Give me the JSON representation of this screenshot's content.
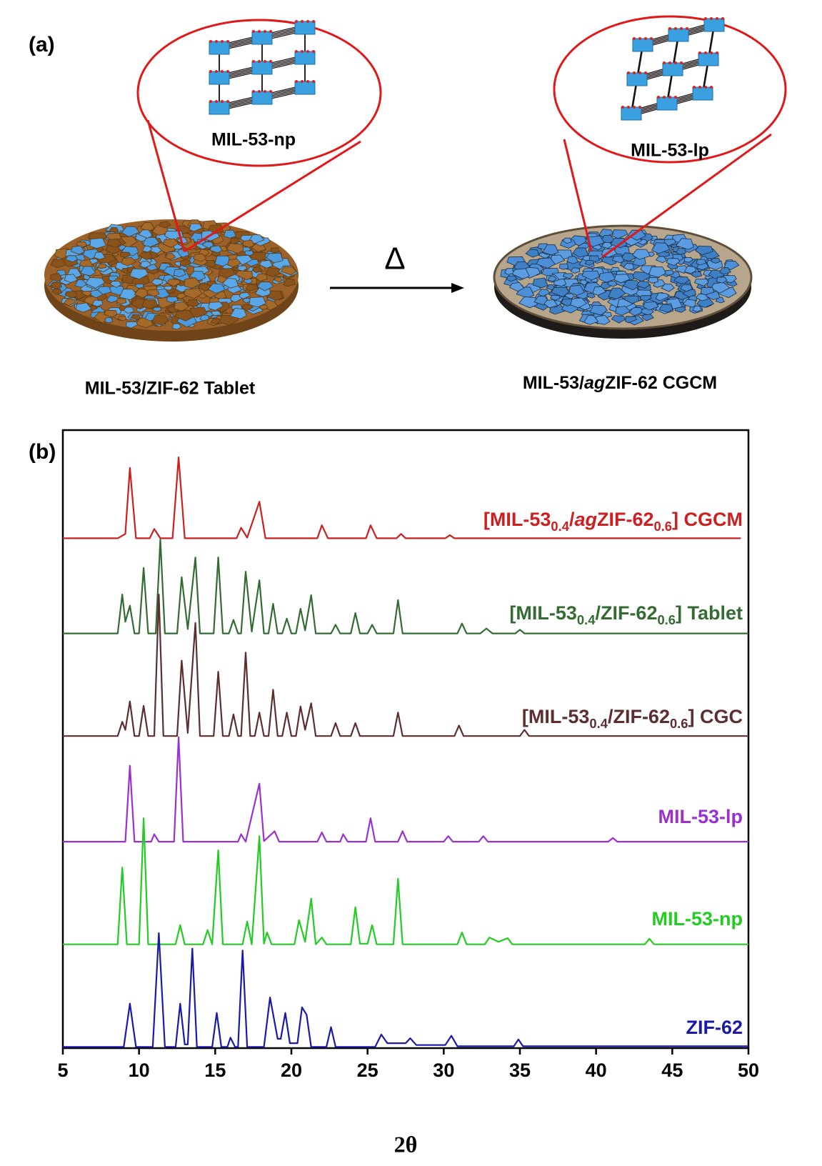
{
  "panel_a": {
    "label": "(a)",
    "left_inset": "MIL-53-np",
    "right_inset": "MIL-53-lp",
    "arrow_label": "Δ",
    "left_caption": "MIL-53/ZIF-62 Tablet",
    "right_caption": [
      {
        "text": "MIL-53/"
      },
      {
        "text": "ag",
        "style": "italic"
      },
      {
        "text": "ZIF-62 CGCM"
      }
    ]
  },
  "chart_data": {
    "type": "line",
    "panel_label": "(b)",
    "x_label": "2θ",
    "xlim": [
      5,
      50
    ],
    "xticks": [
      5,
      10,
      15,
      20,
      25,
      30,
      35,
      40,
      45,
      50
    ],
    "ylim": [
      0,
      100
    ],
    "series": [
      {
        "name": [
          {
            "text": "[MIL-53"
          },
          {
            "text": "0.4",
            "style": "sub"
          },
          {
            "text": "/"
          },
          {
            "text": "ag",
            "style": "italic"
          },
          {
            "text": "ZIF-62"
          },
          {
            "text": "0.6",
            "style": "sub"
          },
          {
            "text": "] CGCM"
          }
        ],
        "color": "#cc1f1f",
        "x": [
          5,
          8.6,
          9.1,
          9.4,
          9.8,
          10.7,
          11.0,
          11.4,
          12.2,
          12.6,
          13.0,
          16.4,
          16.7,
          17.1,
          17.9,
          18.3,
          21.7,
          22.0,
          22.4,
          24.9,
          25.2,
          25.6,
          26.9,
          27.2,
          27.5,
          30.1,
          30.4,
          30.7,
          49.5
        ],
        "values": [
          82.5,
          82.5,
          83.2,
          93.9,
          82.5,
          82.5,
          84.0,
          82.5,
          82.5,
          95.6,
          82.5,
          82.5,
          84.2,
          82.6,
          88.4,
          82.5,
          82.5,
          84.6,
          82.5,
          82.5,
          84.6,
          82.5,
          82.5,
          83.2,
          82.5,
          82.5,
          83.0,
          82.5,
          82.5
        ]
      },
      {
        "name": [
          {
            "text": "[MIL-53"
          },
          {
            "text": "0.4",
            "style": "sub"
          },
          {
            "text": "/ZIF-62"
          },
          {
            "text": "0.6",
            "style": "sub"
          },
          {
            "text": "] Tablet"
          }
        ],
        "color": "#336b33",
        "x": [
          5,
          8.6,
          8.9,
          9.1,
          9.4,
          9.7,
          10.0,
          10.3,
          10.6,
          11.1,
          11.4,
          11.7,
          12.5,
          12.8,
          13.2,
          13.7,
          14.0,
          14.9,
          15.2,
          15.5,
          15.9,
          16.2,
          16.5,
          16.7,
          17.0,
          17.4,
          17.9,
          18.2,
          18.5,
          18.8,
          19.1,
          19.4,
          19.7,
          20.0,
          20.3,
          20.6,
          20.9,
          21.3,
          21.6,
          22.6,
          22.9,
          23.2,
          23.9,
          24.2,
          24.5,
          25.0,
          25.3,
          25.6,
          26.7,
          27.0,
          27.3,
          30.9,
          31.2,
          31.5,
          32.4,
          32.8,
          33.2,
          34.7,
          35.0,
          35.3,
          50
        ],
        "values": [
          67.1,
          67.1,
          73.4,
          69.0,
          71.6,
          67.1,
          67.1,
          77.7,
          67.1,
          67.1,
          82.3,
          67.1,
          67.1,
          76.2,
          67.8,
          79.4,
          67.1,
          67.1,
          79.4,
          67.1,
          67.1,
          69.3,
          67.1,
          67.1,
          77.1,
          67.4,
          75.7,
          67.1,
          67.1,
          71.9,
          67.1,
          67.1,
          69.5,
          67.1,
          67.1,
          71.1,
          67.6,
          73.3,
          67.1,
          67.1,
          68.5,
          67.1,
          67.1,
          70.4,
          67.1,
          67.1,
          68.5,
          67.1,
          67.1,
          72.5,
          67.1,
          67.1,
          68.7,
          67.1,
          67.1,
          67.9,
          67.1,
          67.1,
          67.7,
          67.1,
          67.1
        ]
      },
      {
        "name": [
          {
            "text": "[MIL-53"
          },
          {
            "text": "0.4",
            "style": "sub"
          },
          {
            "text": "/ZIF-62"
          },
          {
            "text": "0.6",
            "style": "sub"
          },
          {
            "text": "] CGC"
          }
        ],
        "color": "#5c2e2e",
        "x": [
          5,
          8.6,
          8.9,
          9.1,
          9.4,
          9.7,
          10.0,
          10.3,
          10.6,
          11.0,
          11.3,
          11.6,
          12.5,
          12.8,
          13.2,
          13.7,
          14.0,
          14.9,
          15.2,
          15.5,
          15.9,
          16.2,
          16.5,
          16.7,
          17.0,
          17.3,
          17.6,
          17.9,
          18.2,
          18.5,
          18.8,
          19.1,
          19.4,
          19.7,
          20.0,
          20.3,
          20.6,
          20.9,
          21.3,
          21.6,
          22.6,
          22.9,
          23.2,
          23.9,
          24.2,
          24.5,
          26.7,
          27.0,
          27.3,
          30.7,
          31.0,
          31.3,
          35.0,
          35.3,
          35.6,
          50
        ],
        "values": [
          50.5,
          50.5,
          52.8,
          51.5,
          56.1,
          50.5,
          50.5,
          55.4,
          50.5,
          50.5,
          73.4,
          50.5,
          50.5,
          62.7,
          51.0,
          68.8,
          50.5,
          50.5,
          60.9,
          50.5,
          50.5,
          54.0,
          50.5,
          50.5,
          64.0,
          50.5,
          50.5,
          54.3,
          50.5,
          50.5,
          58.0,
          50.5,
          50.5,
          54.3,
          50.5,
          50.5,
          55.3,
          51.5,
          55.8,
          50.5,
          50.5,
          52.6,
          50.5,
          50.5,
          52.6,
          50.5,
          50.5,
          54.3,
          50.5,
          50.5,
          52.2,
          50.5,
          50.5,
          51.5,
          50.5,
          50.5
        ]
      },
      {
        "name": [
          {
            "text": "MIL-53-lp"
          }
        ],
        "color": "#9b30d0",
        "x": [
          5,
          9.1,
          9.4,
          9.7,
          10.8,
          11.0,
          11.3,
          12.3,
          12.6,
          12.9,
          16.5,
          16.7,
          17.0,
          17.9,
          18.2,
          18.9,
          19.2,
          21.7,
          22.0,
          22.3,
          23.2,
          23.4,
          23.7,
          24.9,
          25.2,
          25.5,
          27.0,
          27.3,
          27.6,
          30.0,
          30.3,
          30.6,
          32.3,
          32.6,
          32.9,
          40.8,
          41.1,
          41.4,
          50
        ],
        "values": [
          33.4,
          33.4,
          45.7,
          33.4,
          33.4,
          34.6,
          33.4,
          33.4,
          50.3,
          33.4,
          33.4,
          34.6,
          33.4,
          42.8,
          33.5,
          35.1,
          33.4,
          33.4,
          34.9,
          33.4,
          33.4,
          34.6,
          33.4,
          33.4,
          37.2,
          33.4,
          33.4,
          35.1,
          33.4,
          33.4,
          34.3,
          33.4,
          33.4,
          34.3,
          33.4,
          33.4,
          34.0,
          33.4,
          33.4
        ]
      },
      {
        "name": [
          {
            "text": "MIL-53-np"
          }
        ],
        "color": "#22cc22",
        "x": [
          5,
          8.6,
          8.9,
          9.2,
          10.0,
          10.3,
          10.6,
          12.4,
          12.7,
          13.0,
          14.2,
          14.5,
          14.8,
          15.2,
          15.5,
          16.8,
          17.1,
          17.4,
          17.9,
          18.2,
          18.4,
          18.7,
          20.2,
          20.5,
          20.9,
          21.3,
          21.6,
          22.0,
          22.3,
          23.9,
          24.2,
          24.5,
          25.0,
          25.3,
          25.6,
          26.7,
          27.0,
          27.3,
          30.9,
          31.2,
          31.5,
          32.7,
          33.0,
          33.6,
          34.2,
          34.5,
          43.2,
          43.5,
          43.8,
          50
        ],
        "values": [
          16.8,
          16.8,
          29.2,
          16.8,
          16.8,
          37.2,
          16.8,
          16.8,
          19.9,
          16.8,
          16.8,
          19.1,
          16.8,
          32.0,
          16.8,
          16.8,
          20.5,
          16.8,
          34.3,
          16.9,
          18.7,
          16.8,
          16.8,
          20.7,
          17.2,
          24.2,
          16.8,
          17.9,
          16.8,
          16.8,
          22.8,
          16.9,
          16.9,
          19.9,
          16.8,
          16.8,
          27.4,
          16.8,
          16.8,
          18.7,
          16.8,
          16.8,
          17.9,
          17.2,
          17.8,
          16.8,
          16.8,
          17.7,
          16.8,
          16.8
        ]
      },
      {
        "name": [
          {
            "text": "ZIF-62"
          }
        ],
        "color": "#1a1aa8",
        "x": [
          5,
          9.0,
          9.4,
          9.8,
          10.9,
          11.3,
          11.7,
          12.4,
          12.7,
          13.0,
          13.2,
          13.5,
          13.8,
          14.8,
          15.1,
          15.4,
          15.8,
          16.0,
          16.3,
          16.5,
          16.8,
          17.1,
          18.2,
          18.6,
          19.1,
          19.3,
          19.6,
          19.9,
          20.4,
          20.7,
          21.0,
          21.3,
          22.3,
          22.6,
          22.9,
          25.5,
          25.9,
          26.3,
          27.5,
          27.8,
          28.2,
          30.1,
          30.5,
          30.9,
          34.6,
          34.9,
          35.2,
          50
        ],
        "values": [
          0.2,
          0.2,
          7.2,
          0.2,
          0.2,
          18.6,
          0.2,
          0.2,
          7.2,
          0.6,
          0.6,
          16.1,
          0.2,
          0.2,
          5.7,
          0.2,
          0.2,
          1.7,
          0.2,
          0.2,
          15.8,
          0.2,
          0.2,
          8.2,
          1.5,
          1.5,
          5.7,
          0.8,
          0.8,
          6.6,
          5.4,
          0.2,
          0.2,
          3.4,
          0.2,
          0.2,
          2.2,
          0.8,
          0.8,
          1.6,
          0.5,
          0.5,
          2.0,
          0.3,
          0.3,
          1.4,
          0.3,
          0.3
        ]
      }
    ]
  }
}
